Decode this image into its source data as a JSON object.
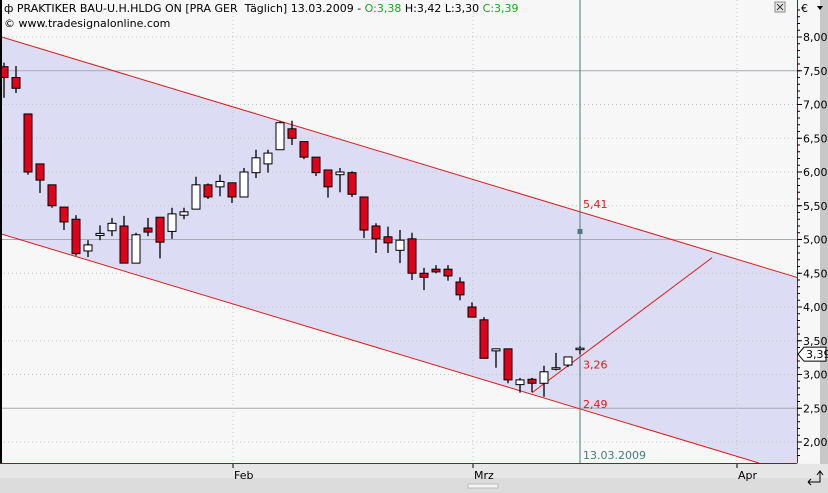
{
  "header": {
    "symbol": "PRAKTIKER BAU-U.H.HLDG ON [PRA GER  Täglich]",
    "date": "13.03.2009",
    "sep": " - ",
    "open": "O:3,38",
    "high": "H:3,42",
    "low": "L:3,30",
    "close": "C:3,39",
    "copyright": "© www.tradesignalonline.com"
  },
  "axis": {
    "currency": "€",
    "last_price_label": "3,39",
    "cursor_date": "13.03.2009"
  },
  "colors": {
    "down": "#e0001b",
    "up": "#ffffff",
    "channel_fill": "#dcdcf4",
    "channel_line": "#e01a1a",
    "cursor": "#4a7c7c",
    "ohlc_green": "#1aa61a"
  },
  "chart_data": {
    "type": "candlestick",
    "title": "PRAKTIKER BAU-U.H.HLDG ON [PRA GER  Täglich]",
    "ylim": [
      1.75,
      8.55
    ],
    "yticks": [
      "8,00",
      "7,50",
      "7,00",
      "6,50",
      "6,00",
      "5,50",
      "5,00",
      "4,50",
      "4,00",
      "3,50",
      "3,00",
      "2,50",
      "2,00"
    ],
    "ytick_values": [
      8,
      7.5,
      7,
      6.5,
      6,
      5.5,
      5,
      4.5,
      4,
      3.5,
      3,
      2.5,
      2
    ],
    "solid_grid": [
      7.5,
      5.0,
      2.5
    ],
    "xticks": [
      {
        "label": "Feb",
        "index": 19
      },
      {
        "label": "Mrz",
        "index": 39
      },
      {
        "label": "Apr",
        "index": 61
      }
    ],
    "last_date": "13.03.2009",
    "ohlc": [
      [
        7.56,
        7.62,
        7.1,
        7.4
      ],
      [
        7.4,
        7.57,
        7.17,
        7.24
      ],
      [
        6.86,
        6.86,
        5.96,
        6.0
      ],
      [
        6.12,
        6.12,
        5.69,
        5.88
      ],
      [
        5.81,
        5.81,
        5.47,
        5.5
      ],
      [
        5.48,
        5.48,
        5.14,
        5.26
      ],
      [
        5.3,
        5.36,
        4.76,
        4.79
      ],
      [
        4.83,
        4.99,
        4.74,
        4.92
      ],
      [
        5.06,
        5.21,
        4.99,
        5.09
      ],
      [
        5.13,
        5.32,
        5.05,
        5.24
      ],
      [
        5.2,
        5.35,
        4.65,
        4.65
      ],
      [
        4.65,
        5.1,
        4.65,
        5.07
      ],
      [
        5.17,
        5.32,
        5.05,
        5.11
      ],
      [
        5.33,
        5.33,
        4.72,
        4.96
      ],
      [
        5.12,
        5.47,
        5.01,
        5.38
      ],
      [
        5.36,
        5.47,
        5.3,
        5.41
      ],
      [
        5.45,
        5.93,
        5.45,
        5.81
      ],
      [
        5.81,
        5.83,
        5.6,
        5.63
      ],
      [
        5.78,
        5.96,
        5.64,
        5.86
      ],
      [
        5.84,
        5.84,
        5.54,
        5.63
      ],
      [
        5.63,
        6.06,
        5.63,
        6.0
      ],
      [
        5.99,
        6.33,
        5.91,
        6.21
      ],
      [
        6.12,
        6.33,
        5.99,
        6.28
      ],
      [
        6.33,
        6.75,
        6.33,
        6.73
      ],
      [
        6.64,
        6.76,
        6.4,
        6.5
      ],
      [
        6.45,
        6.45,
        6.19,
        6.22
      ],
      [
        6.22,
        6.22,
        5.94,
        5.99
      ],
      [
        6.03,
        6.03,
        5.62,
        5.78
      ],
      [
        5.96,
        6.06,
        5.7,
        6.0
      ],
      [
        5.99,
        6.01,
        5.63,
        5.67
      ],
      [
        5.63,
        5.63,
        5.02,
        5.14
      ],
      [
        5.2,
        5.24,
        4.8,
        5.01
      ],
      [
        5.04,
        5.19,
        4.8,
        4.95
      ],
      [
        4.84,
        5.14,
        4.65,
        4.99
      ],
      [
        5.01,
        5.1,
        4.4,
        4.5
      ],
      [
        4.5,
        4.58,
        4.25,
        4.44
      ],
      [
        4.56,
        4.62,
        4.5,
        4.52
      ],
      [
        4.56,
        4.62,
        4.39,
        4.46
      ],
      [
        4.37,
        4.44,
        4.1,
        4.18
      ],
      [
        4.0,
        4.07,
        3.85,
        3.85
      ],
      [
        3.81,
        3.85,
        3.24,
        3.24
      ],
      [
        3.35,
        3.38,
        3.1,
        3.38
      ],
      [
        3.38,
        3.38,
        2.87,
        2.92
      ],
      [
        2.85,
        2.95,
        2.73,
        2.92
      ],
      [
        2.93,
        2.95,
        2.74,
        2.87
      ],
      [
        2.87,
        3.13,
        2.67,
        3.04
      ],
      [
        3.08,
        3.32,
        3.06,
        3.1
      ],
      [
        3.14,
        3.26,
        3.11,
        3.26
      ],
      [
        3.38,
        3.42,
        3.3,
        3.39
      ]
    ],
    "channel": {
      "upper": {
        "start_index": 0,
        "start": 7.99,
        "end_index": 48,
        "end": 5.41,
        "label": "5,41"
      },
      "lower": {
        "start_index": 0,
        "start": 5.07,
        "end_index": 48,
        "end": 2.49,
        "label": "2,49"
      },
      "trendline": {
        "start_index": 44,
        "start": 2.73,
        "end_index": 59,
        "end": 4.73,
        "label": "3,26"
      }
    }
  }
}
